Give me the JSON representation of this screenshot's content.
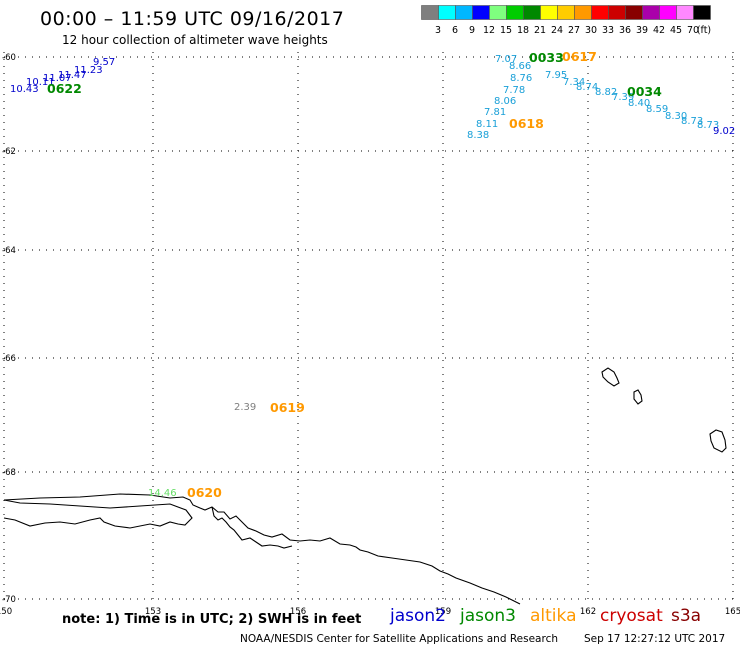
{
  "header": {
    "title": "00:00 – 11:59 UTC 09/16/2017",
    "subtitle": "12 hour collection of altimeter wave heights"
  },
  "scale": {
    "unit": "(ft)",
    "bins": [
      {
        "label": "3",
        "color": "#7f7f7f"
      },
      {
        "label": "6",
        "color": "#00ffff"
      },
      {
        "label": "9",
        "color": "#00b7ff"
      },
      {
        "label": "12",
        "color": "#0000ff"
      },
      {
        "label": "15",
        "color": "#7fff7f"
      },
      {
        "label": "18",
        "color": "#00cc00"
      },
      {
        "label": "21",
        "color": "#008800"
      },
      {
        "label": "24",
        "color": "#ffff00"
      },
      {
        "label": "27",
        "color": "#ffcc00"
      },
      {
        "label": "30",
        "color": "#ff9900"
      },
      {
        "label": "33",
        "color": "#ff0000"
      },
      {
        "label": "36",
        "color": "#cc0000"
      },
      {
        "label": "39",
        "color": "#880000"
      },
      {
        "label": "42",
        "color": "#aa00aa"
      },
      {
        "label": "45",
        "color": "#ff00ff"
      },
      {
        "label": "70",
        "color": "#ff88ff"
      },
      {
        "label": "",
        "color": "#000000"
      }
    ]
  },
  "map": {
    "lon_range": [
      150,
      165
    ],
    "lat_range": [
      -70,
      -60
    ],
    "x_ticks": [
      "150",
      "153",
      "156",
      "159",
      "162",
      "165"
    ],
    "y_ticks": [
      "-60",
      "-62",
      "-64",
      "-66",
      "-68",
      "-70"
    ]
  },
  "satellite_colors": {
    "jason2": "#0000cc",
    "jason3": "#008800",
    "altika": "#ff9900",
    "cryosat": "#cc0000",
    "s3a": "#880000",
    "obs_light": "#1aa0d8",
    "obs_gray": "#7f7f7f",
    "obs_green": "#66dd66"
  },
  "observations": [
    {
      "text": "10.43",
      "sat": "jason2"
    },
    {
      "text": "10.11",
      "sat": "jason2"
    },
    {
      "text": "11.07",
      "sat": "jason2"
    },
    {
      "text": "11.47",
      "sat": "jason2"
    },
    {
      "text": "11.23",
      "sat": "jason2"
    },
    {
      "text": "9.57",
      "sat": "jason2"
    },
    {
      "text": "7.07",
      "sat": "obs_light"
    },
    {
      "text": "8.66",
      "sat": "obs_light"
    },
    {
      "text": "8.76",
      "sat": "obs_light"
    },
    {
      "text": "7.78",
      "sat": "obs_light"
    },
    {
      "text": "8.06",
      "sat": "obs_light"
    },
    {
      "text": "7.81",
      "sat": "obs_light"
    },
    {
      "text": "8.11",
      "sat": "obs_light"
    },
    {
      "text": "8.38",
      "sat": "obs_light"
    },
    {
      "text": "7.95",
      "sat": "obs_light"
    },
    {
      "text": "7.34",
      "sat": "obs_light"
    },
    {
      "text": "8.74",
      "sat": "obs_light"
    },
    {
      "text": "8.82",
      "sat": "obs_light"
    },
    {
      "text": "7.39",
      "sat": "obs_light"
    },
    {
      "text": "8.40",
      "sat": "obs_light"
    },
    {
      "text": "8.59",
      "sat": "obs_light"
    },
    {
      "text": "8.30",
      "sat": "obs_light"
    },
    {
      "text": "8.73",
      "sat": "obs_light"
    },
    {
      "text": "8.73",
      "sat": "obs_light"
    },
    {
      "text": "9.02",
      "sat": "jason2"
    },
    {
      "text": "2.39",
      "sat": "obs_gray"
    },
    {
      "text": "14.46",
      "sat": "obs_green"
    }
  ],
  "pass_times": [
    {
      "text": "0622",
      "sat": "jason3"
    },
    {
      "text": "0033",
      "sat": "jason3"
    },
    {
      "text": "0617",
      "sat": "altika"
    },
    {
      "text": "0034",
      "sat": "jason3"
    },
    {
      "text": "0618",
      "sat": "altika"
    },
    {
      "text": "0619",
      "sat": "altika"
    },
    {
      "text": "0620",
      "sat": "altika"
    }
  ],
  "footer": {
    "note": "note: 1) Time is in UTC; 2) SWH is in feet",
    "satellites": [
      "jason2",
      "jason3",
      "altika",
      "cryosat",
      "s3a"
    ],
    "credit": "NOAA/NESDIS Center for Satellite Applications and Research",
    "timestamp": "Sep 17 12:27:12 UTC 2017"
  }
}
